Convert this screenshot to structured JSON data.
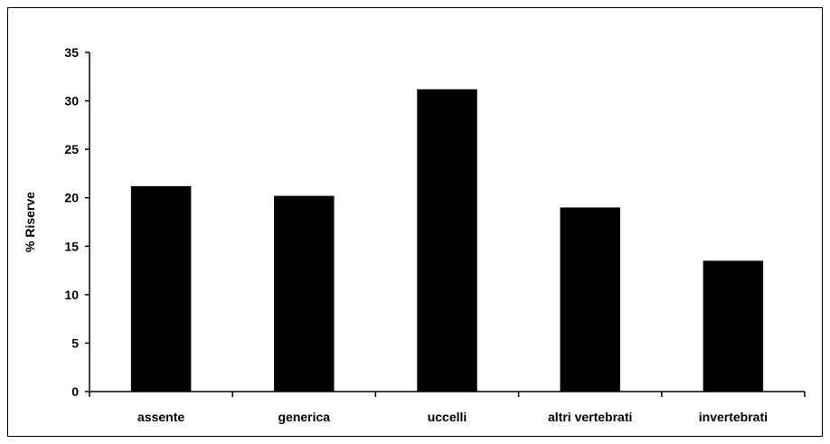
{
  "chart_data": {
    "type": "bar",
    "title": "",
    "xlabel": "",
    "ylabel": "% Riserve",
    "categories": [
      "assente",
      "generica",
      "uccelli",
      "altri vertebrati",
      "invertebrati"
    ],
    "values": [
      21.2,
      20.2,
      31.2,
      19.0,
      13.5
    ],
    "ylim": [
      0,
      35
    ],
    "yticks": [
      0,
      5,
      10,
      15,
      20,
      25,
      30,
      35
    ],
    "grid": false,
    "legend": "none",
    "bar_color": "#000000"
  }
}
